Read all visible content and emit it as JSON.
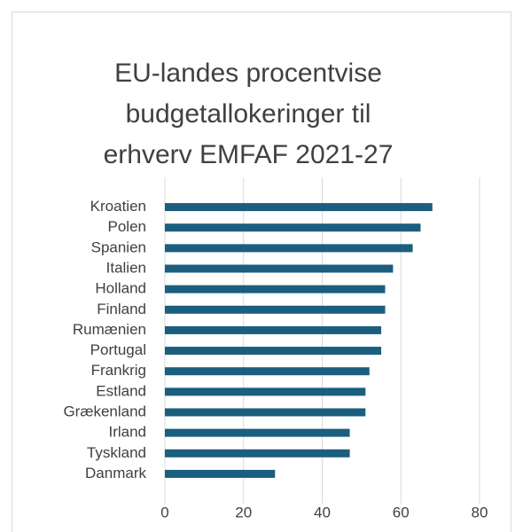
{
  "chart_data": {
    "type": "barh",
    "title": [
      "EU-landes procentvise",
      "budgetallokeringer til",
      "erhverv EMFAF 2021-27"
    ],
    "categories": [
      "Kroatien",
      "Polen",
      "Spanien",
      "Italien",
      "Holland",
      "Finland",
      "Rumænien",
      "Portugal",
      "Frankrig",
      "Estland",
      "Grækenland",
      "Irland",
      "Tyskland",
      "Danmark"
    ],
    "values": [
      68,
      65,
      63,
      58,
      56,
      56,
      55,
      55,
      52,
      51,
      51,
      47,
      47,
      28
    ],
    "color": "#1b5e7e",
    "xlim": [
      0,
      80
    ],
    "xticks": [
      0,
      20,
      40,
      60,
      80
    ],
    "grid": true
  }
}
